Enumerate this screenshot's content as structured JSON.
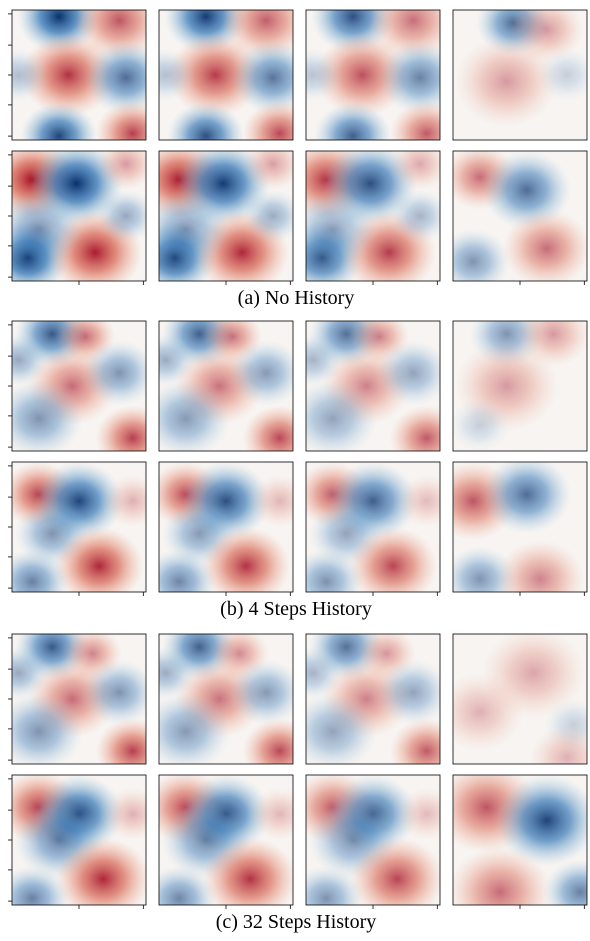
{
  "figure": {
    "groups": [
      {
        "caption": "(a) No History"
      },
      {
        "caption": "(b) 4 Steps History"
      },
      {
        "caption": "(c) 32 Steps History"
      }
    ]
  }
}
